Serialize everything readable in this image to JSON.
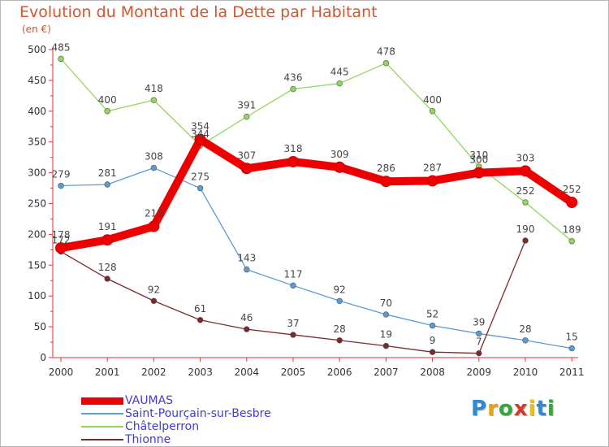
{
  "title": "Evolution du Montant de la Dette par Habitant",
  "subtitle": "(en €)",
  "logo_text": "Proxiti",
  "chart_data": {
    "type": "line",
    "title": "Evolution du Montant de la Dette par Habitant",
    "subtitle": "(en €)",
    "xlabel": "",
    "ylabel": "",
    "categories": [
      "2000",
      "2001",
      "2002",
      "2003",
      "2004",
      "2005",
      "2006",
      "2007",
      "2008",
      "2009",
      "2010",
      "2011"
    ],
    "y_ticks": [
      "0",
      "50",
      "100",
      "150",
      "200",
      "250",
      "300",
      "350",
      "400",
      "450",
      "500"
    ],
    "ylim": [
      0,
      500
    ],
    "grid": false,
    "legend_position": "bottom-left",
    "series": [
      {
        "name": "VAUMAS",
        "color": "#ee0000",
        "values": [
          178,
          191,
          213,
          354,
          307,
          318,
          309,
          286,
          287,
          300,
          303,
          252
        ]
      },
      {
        "name": "Saint-Pourçain-sur-Besbre",
        "color": "#5b9bd5",
        "values": [
          279,
          281,
          308,
          275,
          143,
          117,
          92,
          70,
          52,
          39,
          28,
          15
        ]
      },
      {
        "name": "Châtelperron",
        "color": "#8fd85c",
        "values": [
          485,
          400,
          418,
          344,
          391,
          436,
          445,
          478,
          400,
          310,
          252,
          189
        ]
      },
      {
        "name": "Thionne",
        "color": "#7a2a2a",
        "values": [
          172,
          128,
          92,
          61,
          46,
          37,
          28,
          19,
          9,
          7,
          190,
          null
        ]
      }
    ]
  }
}
